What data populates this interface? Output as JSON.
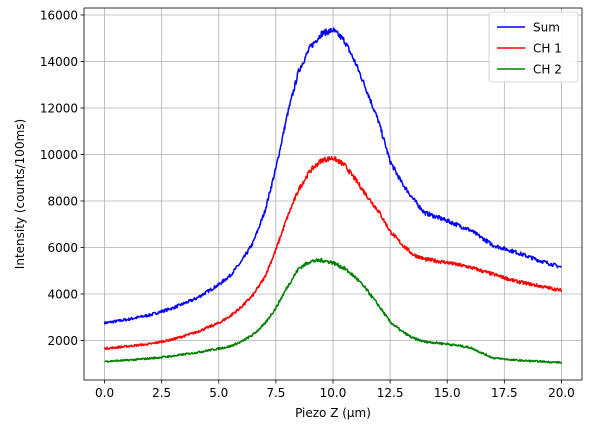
{
  "chart_data": {
    "type": "line",
    "xlabel": "Piezo Z (μm)",
    "ylabel": "Intensity (counts/100ms)",
    "xlim": [
      -0.9,
      20.9
    ],
    "ylim": [
      300,
      16300
    ],
    "x_ticks": [
      0,
      2.5,
      5,
      7.5,
      10,
      12.5,
      15,
      17.5,
      20
    ],
    "x_tick_labels": [
      "0.0",
      "2.5",
      "5.0",
      "7.5",
      "10.0",
      "12.5",
      "15.0",
      "17.5",
      "20.0"
    ],
    "y_ticks": [
      2000,
      4000,
      6000,
      8000,
      10000,
      12000,
      14000,
      16000
    ],
    "y_tick_labels": [
      "2000",
      "4000",
      "6000",
      "8000",
      "10000",
      "12000",
      "14000",
      "16000"
    ],
    "grid": true,
    "legend_position": "top-right",
    "series": [
      {
        "name": "Sum",
        "color": "#0000ff",
        "x": [
          0,
          1,
          2,
          3,
          4,
          5,
          5.5,
          6,
          6.5,
          7,
          7.5,
          8,
          8.5,
          9,
          9.5,
          10,
          10.5,
          11,
          11.5,
          12,
          12.5,
          13,
          13.5,
          14,
          15,
          16,
          17,
          18,
          19,
          20
        ],
        "values": [
          2750,
          2900,
          3100,
          3400,
          3800,
          4400,
          4800,
          5400,
          6200,
          7500,
          9400,
          11700,
          13600,
          14600,
          15200,
          15350,
          14900,
          13900,
          12700,
          11400,
          9700,
          8800,
          8100,
          7500,
          7150,
          6750,
          6100,
          5800,
          5450,
          5150
        ]
      },
      {
        "name": "CH 1",
        "color": "#ff0000",
        "x": [
          0,
          1,
          2,
          3,
          4,
          5,
          5.5,
          6,
          6.5,
          7,
          7.5,
          8,
          8.5,
          9,
          9.5,
          10,
          10.5,
          11,
          11.5,
          12,
          12.5,
          13,
          13.5,
          14,
          15,
          16,
          17,
          18,
          19,
          20
        ],
        "values": [
          1650,
          1750,
          1850,
          2050,
          2350,
          2750,
          3050,
          3450,
          3950,
          4700,
          5900,
          7300,
          8500,
          9300,
          9750,
          9850,
          9550,
          8900,
          8200,
          7550,
          6700,
          6150,
          5700,
          5500,
          5350,
          5150,
          4850,
          4550,
          4350,
          4150
        ]
      },
      {
        "name": "CH 2",
        "color": "#008000",
        "x": [
          0,
          1,
          2,
          3,
          4,
          5,
          5.5,
          6,
          6.5,
          7,
          7.5,
          8,
          8.5,
          9,
          9.5,
          10,
          10.5,
          11,
          11.5,
          12,
          12.5,
          13,
          13.5,
          14,
          15,
          16,
          17,
          18,
          19,
          20
        ],
        "values": [
          1100,
          1150,
          1230,
          1330,
          1480,
          1650,
          1750,
          1950,
          2250,
          2700,
          3400,
          4300,
          5100,
          5400,
          5450,
          5350,
          5100,
          4700,
          4150,
          3500,
          2800,
          2400,
          2100,
          1950,
          1850,
          1700,
          1250,
          1150,
          1100,
          1050
        ]
      }
    ]
  }
}
